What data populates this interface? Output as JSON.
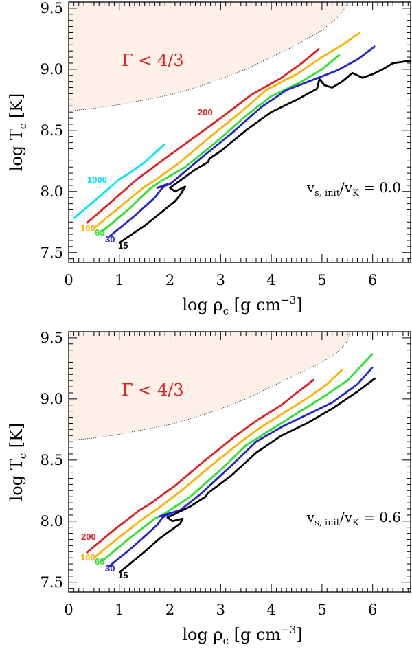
{
  "chart_data": [
    {
      "type": "line",
      "xlabel": "log ρ",
      "xlabel_sub": "c",
      "xlabel_unit": "[g cm",
      "xlabel_unit_sup": "−3",
      "xlabel_unit_close": "]",
      "ylabel": "log T",
      "ylabel_sub": "c",
      "ylabel_unit": "[K]",
      "xlim": [
        0,
        6.75
      ],
      "ylim": [
        7.42,
        9.55
      ],
      "xticks": [
        "0",
        "1",
        "2",
        "3",
        "4",
        "5",
        "6"
      ],
      "yticks": [
        "7.5",
        "8.0",
        "8.5",
        "9.0",
        "9.5"
      ],
      "region_label": "Γ < 4/3",
      "annotation": {
        "v": "v",
        "s_init": "s, init",
        "slash": "/v",
        "k": "K",
        "eq": " = 0.0"
      },
      "gamma_boundary": [
        [
          0,
          8.66
        ],
        [
          0.5,
          8.68
        ],
        [
          1,
          8.71
        ],
        [
          1.5,
          8.75
        ],
        [
          2,
          8.79
        ],
        [
          2.5,
          8.85
        ],
        [
          3,
          8.92
        ],
        [
          3.5,
          9.0
        ],
        [
          4,
          9.1
        ],
        [
          4.5,
          9.2
        ],
        [
          5,
          9.32
        ],
        [
          5.3,
          9.42
        ],
        [
          5.45,
          9.5
        ],
        [
          5.52,
          9.55
        ]
      ],
      "series": [
        {
          "name": "1000",
          "color": "#00e5ff",
          "label": "1000",
          "points": [
            [
              0.1,
              7.78
            ],
            [
              0.5,
              7.92
            ],
            [
              1.0,
              8.1
            ],
            [
              1.2,
              8.15
            ],
            [
              1.5,
              8.24
            ],
            [
              1.9,
              8.39
            ]
          ]
        },
        {
          "name": "200",
          "color": "#e41a1c",
          "label": "200",
          "points": [
            [
              0.35,
              7.74
            ],
            [
              0.8,
              7.9
            ],
            [
              1.35,
              8.1
            ],
            [
              1.9,
              8.27
            ],
            [
              2.4,
              8.42
            ],
            [
              3.0,
              8.6
            ],
            [
              3.6,
              8.79
            ],
            [
              4.2,
              8.93
            ],
            [
              4.6,
              9.05
            ],
            [
              4.95,
              9.17
            ]
          ]
        },
        {
          "name": "100",
          "color": "#ffb000",
          "label": "100",
          "points": [
            [
              0.5,
              7.7
            ],
            [
              1.0,
              7.87
            ],
            [
              1.5,
              8.04
            ],
            [
              1.7,
              8.09
            ],
            [
              2.2,
              8.24
            ],
            [
              2.8,
              8.45
            ],
            [
              3.4,
              8.65
            ],
            [
              3.9,
              8.83
            ],
            [
              4.5,
              8.96
            ],
            [
              5.0,
              9.1
            ],
            [
              5.4,
              9.2
            ],
            [
              5.75,
              9.3
            ]
          ]
        },
        {
          "name": "60",
          "color": "#2ee02e",
          "label": "60",
          "points": [
            [
              0.65,
              7.67
            ],
            [
              1.2,
              7.86
            ],
            [
              1.6,
              8.02
            ],
            [
              1.8,
              8.08
            ],
            [
              2.3,
              8.2
            ],
            [
              2.9,
              8.4
            ],
            [
              3.5,
              8.62
            ],
            [
              4.0,
              8.78
            ],
            [
              4.6,
              8.9
            ],
            [
              5.0,
              9.0
            ],
            [
              5.35,
              9.12
            ]
          ]
        },
        {
          "name": "30",
          "color": "#2020d0",
          "label": "30",
          "points": [
            [
              0.8,
              7.63
            ],
            [
              1.3,
              7.8
            ],
            [
              1.7,
              7.95
            ],
            [
              1.85,
              8.03
            ],
            [
              1.95,
              8.06
            ],
            [
              1.75,
              8.03
            ],
            [
              2.0,
              8.06
            ],
            [
              2.6,
              8.27
            ],
            [
              3.2,
              8.47
            ],
            [
              3.8,
              8.69
            ],
            [
              4.3,
              8.83
            ],
            [
              4.8,
              8.91
            ],
            [
              5.3,
              8.99
            ],
            [
              5.7,
              9.08
            ],
            [
              6.05,
              9.19
            ]
          ]
        },
        {
          "name": "15",
          "color": "#000000",
          "label": "15",
          "points": [
            [
              1.0,
              7.58
            ],
            [
              1.5,
              7.72
            ],
            [
              1.8,
              7.82
            ],
            [
              2.1,
              7.92
            ],
            [
              2.2,
              7.97
            ],
            [
              2.3,
              8.04
            ],
            [
              2.1,
              8.0
            ],
            [
              2.0,
              8.03
            ],
            [
              2.5,
              8.18
            ],
            [
              2.75,
              8.24
            ],
            [
              2.78,
              8.27
            ],
            [
              3.0,
              8.33
            ],
            [
              3.5,
              8.5
            ],
            [
              4.0,
              8.65
            ],
            [
              4.5,
              8.75
            ],
            [
              4.9,
              8.84
            ],
            [
              4.95,
              8.92
            ],
            [
              5.05,
              8.87
            ],
            [
              5.2,
              8.85
            ],
            [
              5.4,
              8.9
            ],
            [
              5.6,
              8.97
            ],
            [
              5.8,
              8.93
            ],
            [
              6.0,
              8.96
            ],
            [
              6.2,
              9.0
            ],
            [
              6.4,
              9.05
            ],
            [
              6.75,
              9.07
            ]
          ]
        }
      ]
    },
    {
      "type": "line",
      "xlabel": "log ρ",
      "xlabel_sub": "c",
      "xlabel_unit": "[g cm",
      "xlabel_unit_sup": "−3",
      "xlabel_unit_close": "]",
      "ylabel": "log T",
      "ylabel_sub": "c",
      "ylabel_unit": "[K]",
      "xlim": [
        0,
        6.75
      ],
      "ylim": [
        7.42,
        9.55
      ],
      "xticks": [
        "0",
        "1",
        "2",
        "3",
        "4",
        "5",
        "6"
      ],
      "yticks": [
        "7.5",
        "8.0",
        "8.5",
        "9.0",
        "9.5"
      ],
      "region_label": "Γ < 4/3",
      "annotation": {
        "v": "v",
        "s_init": "s, init",
        "slash": "/v",
        "k": "K",
        "eq": " = 0.6"
      },
      "gamma_boundary": [
        [
          0,
          8.66
        ],
        [
          0.5,
          8.68
        ],
        [
          1,
          8.71
        ],
        [
          1.5,
          8.75
        ],
        [
          2,
          8.79
        ],
        [
          2.5,
          8.85
        ],
        [
          3,
          8.92
        ],
        [
          3.5,
          9.0
        ],
        [
          4,
          9.1
        ],
        [
          4.5,
          9.2
        ],
        [
          5,
          9.3
        ],
        [
          5.3,
          9.38
        ],
        [
          5.5,
          9.47
        ],
        [
          5.55,
          9.55
        ]
      ],
      "series": [
        {
          "name": "200",
          "color": "#e41a1c",
          "label": "200",
          "points": [
            [
              0.35,
              7.74
            ],
            [
              0.9,
              7.93
            ],
            [
              1.4,
              8.09
            ],
            [
              1.6,
              8.14
            ],
            [
              2.1,
              8.29
            ],
            [
              2.7,
              8.5
            ],
            [
              3.3,
              8.7
            ],
            [
              3.7,
              8.82
            ],
            [
              4.2,
              8.95
            ],
            [
              4.5,
              9.05
            ],
            [
              4.85,
              9.16
            ]
          ]
        },
        {
          "name": "100",
          "color": "#ffb000",
          "label": "100",
          "points": [
            [
              0.5,
              7.7
            ],
            [
              1.0,
              7.87
            ],
            [
              1.5,
              8.03
            ],
            [
              1.65,
              8.07
            ],
            [
              2.2,
              8.24
            ],
            [
              2.8,
              8.45
            ],
            [
              3.4,
              8.65
            ],
            [
              3.8,
              8.77
            ],
            [
              4.3,
              8.9
            ],
            [
              4.8,
              9.03
            ],
            [
              5.1,
              9.12
            ],
            [
              5.4,
              9.24
            ]
          ]
        },
        {
          "name": "60",
          "color": "#2ee02e",
          "label": "60",
          "points": [
            [
              0.65,
              7.67
            ],
            [
              1.2,
              7.86
            ],
            [
              1.7,
              8.02
            ],
            [
              1.85,
              8.05
            ],
            [
              2.4,
              8.2
            ],
            [
              3.0,
              8.42
            ],
            [
              3.5,
              8.62
            ],
            [
              4.0,
              8.75
            ],
            [
              4.5,
              8.88
            ],
            [
              5.0,
              9.01
            ],
            [
              5.5,
              9.15
            ],
            [
              6.0,
              9.37
            ]
          ]
        },
        {
          "name": "30",
          "color": "#2020d0",
          "label": "30",
          "points": [
            [
              0.8,
              7.63
            ],
            [
              1.3,
              7.8
            ],
            [
              1.75,
              7.97
            ],
            [
              1.85,
              8.03
            ],
            [
              2.0,
              8.06
            ],
            [
              1.8,
              8.04
            ],
            [
              2.2,
              8.09
            ],
            [
              2.6,
              8.22
            ],
            [
              3.2,
              8.45
            ],
            [
              3.7,
              8.65
            ],
            [
              4.2,
              8.77
            ],
            [
              4.7,
              8.87
            ],
            [
              5.2,
              8.97
            ],
            [
              5.7,
              9.12
            ],
            [
              6.0,
              9.26
            ]
          ]
        },
        {
          "name": "15",
          "color": "#000000",
          "label": "15",
          "points": [
            [
              1.0,
              7.58
            ],
            [
              1.5,
              7.75
            ],
            [
              1.8,
              7.86
            ],
            [
              2.1,
              7.95
            ],
            [
              2.2,
              7.98
            ],
            [
              2.25,
              8.02
            ],
            [
              2.05,
              8.0
            ],
            [
              1.95,
              8.03
            ],
            [
              2.4,
              8.12
            ],
            [
              2.7,
              8.2
            ],
            [
              2.75,
              8.23
            ],
            [
              3.2,
              8.37
            ],
            [
              3.7,
              8.56
            ],
            [
              4.2,
              8.7
            ],
            [
              4.7,
              8.8
            ],
            [
              5.2,
              8.92
            ],
            [
              5.7,
              9.06
            ],
            [
              6.05,
              9.17
            ]
          ]
        }
      ]
    }
  ]
}
